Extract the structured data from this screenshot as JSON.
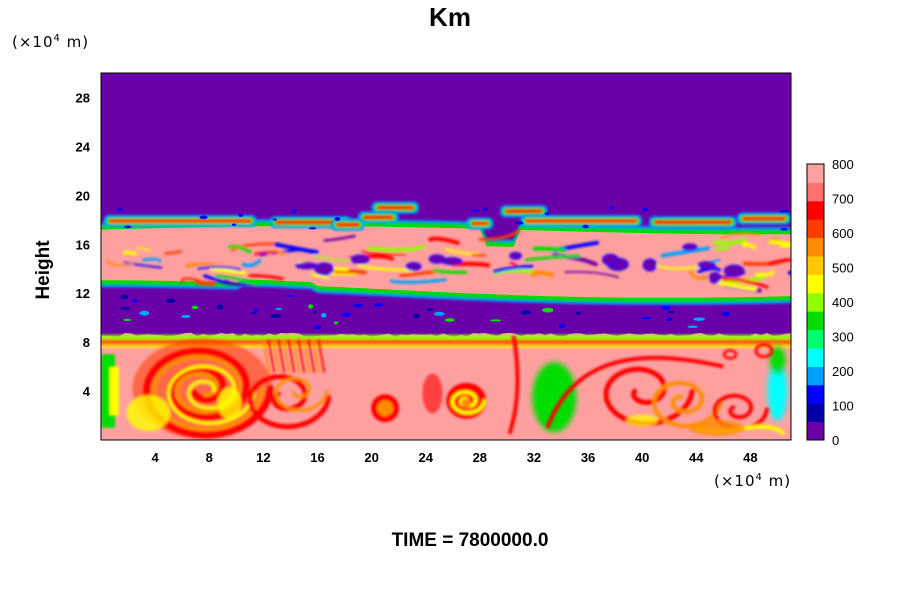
{
  "chart_data": {
    "type": "heatmap",
    "title": "Km",
    "ylabel": "Height",
    "x_unit": {
      "prefix": "(×10",
      "exp": "4",
      "suffix": " m)"
    },
    "y_unit": {
      "prefix": "(×10",
      "exp": "4",
      "suffix": " m)"
    },
    "xlim": [
      0,
      51
    ],
    "ylim": [
      0,
      30
    ],
    "x_ticks": [
      4,
      8,
      12,
      16,
      20,
      24,
      28,
      32,
      36,
      40,
      44,
      48
    ],
    "y_ticks": [
      4,
      8,
      12,
      16,
      20,
      24,
      28
    ],
    "colorbar": {
      "range": [
        0,
        800
      ],
      "tick_values": [
        0,
        100,
        200,
        300,
        400,
        500,
        600,
        700,
        800
      ],
      "colors": [
        "#6a00a8",
        "#0000aa",
        "#0000ff",
        "#00a0ff",
        "#00ffff",
        "#00ff70",
        "#00dd00",
        "#90ff00",
        "#ffff00",
        "#ffc800",
        "#ff8c00",
        "#ff3c00",
        "#ff0000",
        "#ff7070",
        "#ffa0a0"
      ]
    },
    "layers": [
      {
        "y_range": [
          19,
          30
        ],
        "value": 0,
        "description": "quiescent upper region"
      },
      {
        "y_range": [
          17,
          19
        ],
        "value": "patchy 0-800",
        "description": "thin turbulent layer"
      },
      {
        "y_range": [
          12,
          17
        ],
        "value": "mostly 800 with mixed filaments",
        "description": "turbulent band"
      },
      {
        "y_range": [
          9,
          12
        ],
        "value": "0 with sparse patches",
        "description": "quiet gap"
      },
      {
        "y_range": [
          0,
          9
        ],
        "value": "mostly 800 with vortex structures",
        "description": "lower turbulent layer"
      }
    ]
  },
  "time_label": "TIME = 7800000.0"
}
